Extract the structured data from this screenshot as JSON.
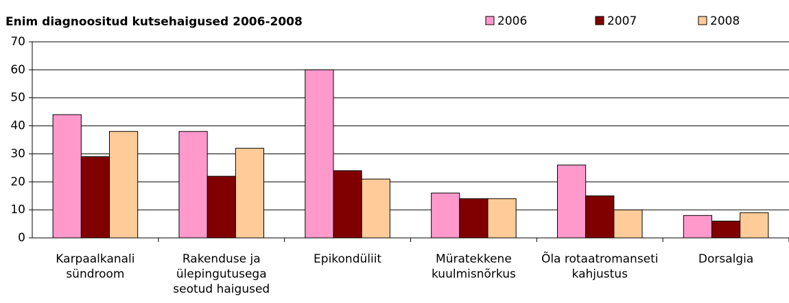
{
  "chart_data": {
    "type": "bar",
    "title": "Enim diagnoositud kutsehaigused 2006-2008",
    "categories": [
      "Karpaalkanali sündroom",
      "Rakenduse ja ülepingutusega seotud haigused",
      "Epikondüliit",
      "Müratekkene kuulmisnõrkus",
      "Õla rotaatromanseti kahjustus",
      "Dorsalgia"
    ],
    "series": [
      {
        "name": "2006",
        "color": "#ff99cc",
        "values": [
          44,
          38,
          60,
          16,
          26,
          8
        ]
      },
      {
        "name": "2007",
        "color": "#800000",
        "values": [
          29,
          22,
          24,
          14,
          15,
          6
        ]
      },
      {
        "name": "2008",
        "color": "#ffcc99",
        "values": [
          38,
          32,
          21,
          14,
          10,
          9
        ]
      }
    ],
    "ylim": [
      0,
      70
    ],
    "yticks": [
      0,
      10,
      20,
      30,
      40,
      50,
      60,
      70
    ],
    "grid": true,
    "legend": "top-right"
  }
}
